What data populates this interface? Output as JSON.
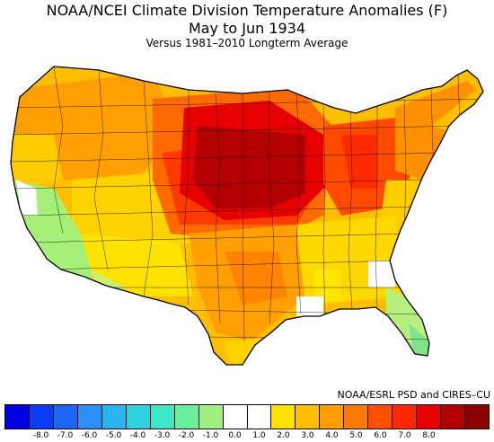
{
  "title": "NOAA/NCEI Climate Division Temperature Anomalies (F)",
  "period": "May to Jun 1934",
  "baseline": "Versus 1981–2010 Longterm Average",
  "credit": "NOAA/ESRL PSD and CIRES–CU",
  "legend": {
    "colors": [
      "#0000e0",
      "#0b3cf5",
      "#1e64f5",
      "#2a90f5",
      "#2bb5f0",
      "#2dd2e0",
      "#3ee6c8",
      "#66f0a0",
      "#a0f080",
      "#ffffff",
      "#ffffff",
      "#ffe000",
      "#ffbe00",
      "#ff9e00",
      "#ff7a00",
      "#ff5000",
      "#ff2800",
      "#e60000",
      "#b40000",
      "#8c0000"
    ],
    "ticks": [
      "-8.0",
      "-7.0",
      "-6.0",
      "-5.0",
      "-4.0",
      "-3.0",
      "-2.0",
      "-1.0",
      "0.0",
      "1.0",
      "2.0",
      "3.0",
      "4.0",
      "5.0",
      "6.0",
      "7.0",
      "8.0"
    ]
  },
  "chart_data": {
    "type": "heatmap",
    "title": "NOAA/NCEI Climate Division Temperature Anomalies (F)",
    "subtitle": "May to Jun 1934 — Versus 1981–2010 Longterm Average",
    "units": "F",
    "colorbar_range": [
      -8.0,
      8.0
    ],
    "colorbar_ticks": [
      -8.0,
      -7.0,
      -6.0,
      -5.0,
      -4.0,
      -3.0,
      -2.0,
      -1.0,
      0.0,
      1.0,
      2.0,
      3.0,
      4.0,
      5.0,
      6.0,
      7.0,
      8.0
    ],
    "regional_anomalies_F": {
      "South Dakota / Nebraska / Iowa / Minnesota core": 6.5,
      "Kansas / Missouri / Illinois / Wisconsin": 5.0,
      "Ohio Valley / Indiana / Michigan": 4.0,
      "Oklahoma / Texas Panhandle": 4.0,
      "Northern Rockies / Montana": 2.5,
      "Pacific Northwest": 2.0,
      "Great Basin / Utah / Colorado": 1.5,
      "Southwest / Arizona / Southern California": -1.5,
      "Central Texas": 3.5,
      "Southeast / Gulf Coast": 1.0,
      "Florida peninsula": -1.0,
      "Mid-Atlantic": 1.5,
      "New England": 0.5
    }
  }
}
